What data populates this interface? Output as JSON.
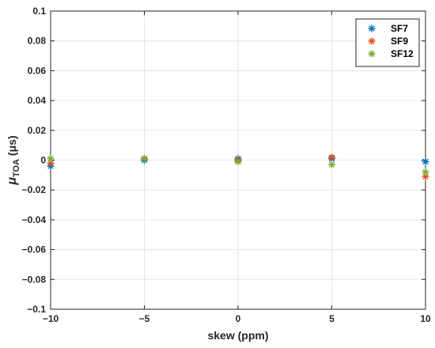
{
  "chart_data": {
    "type": "scatter",
    "xlabel": "skew (ppm)",
    "ylabel": {
      "mu": "μ",
      "sub": "TOA",
      "rest": " (μs)"
    },
    "xlim": [
      -10,
      10
    ],
    "ylim": [
      -0.1,
      0.1
    ],
    "xticks": [
      -10,
      -5,
      0,
      5,
      10
    ],
    "xtick_labels": [
      "−10",
      "−5",
      "0",
      "5",
      "10"
    ],
    "yticks": [
      -0.1,
      -0.08,
      -0.06,
      -0.04,
      -0.02,
      0,
      0.02,
      0.04,
      0.06,
      0.08,
      0.1
    ],
    "ytick_labels": [
      "−0.1",
      "−0.08",
      "−0.06",
      "−0.04",
      "−0.02",
      "0",
      "0.02",
      "0.04",
      "0.06",
      "0.08",
      "0.1"
    ],
    "grid": true,
    "legend_position": "top-right",
    "marker": "asterisk",
    "series": [
      {
        "name": "SF7",
        "color": "#0072BD",
        "points": [
          [
            -10,
            -0.004
          ],
          [
            -5,
            0.0
          ],
          [
            0,
            0.001
          ],
          [
            5,
            0.001
          ],
          [
            10,
            -0.001
          ]
        ]
      },
      {
        "name": "SF9",
        "color": "#D95319",
        "points": [
          [
            -10,
            -0.002
          ],
          [
            -5,
            0.001
          ],
          [
            0,
            0.0
          ],
          [
            5,
            0.002
          ],
          [
            10,
            -0.011
          ]
        ]
      },
      {
        "name": "SF12",
        "color": "#77AC30",
        "points": [
          [
            -10,
            0.001
          ],
          [
            -5,
            0.001
          ],
          [
            0,
            -0.001
          ],
          [
            5,
            -0.003
          ],
          [
            10,
            -0.008
          ]
        ]
      }
    ]
  }
}
